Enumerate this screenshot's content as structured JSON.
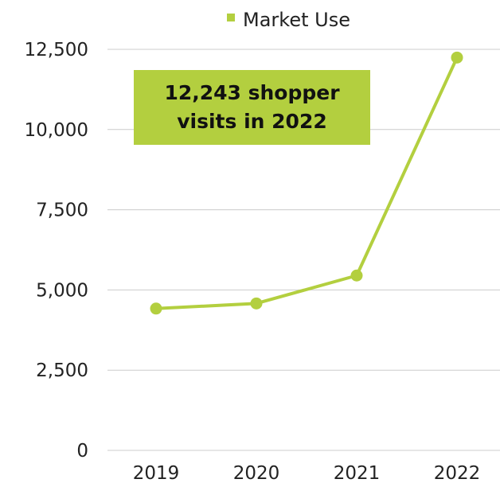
{
  "chart_data": {
    "type": "line",
    "categories": [
      "2019",
      "2020",
      "2021",
      "2022"
    ],
    "series": [
      {
        "name": "Market Use",
        "values": [
          4420,
          4580,
          5450,
          12243
        ]
      }
    ],
    "title": "",
    "xlabel": "",
    "ylabel": "",
    "ylim": [
      0,
      12500
    ],
    "yticks": [
      "0",
      "2,500",
      "5,000",
      "7,500",
      "10,000",
      "12,500"
    ],
    "grid": true,
    "legend": "top-center",
    "color": "#b3cf3f",
    "annotation": {
      "line1": "12,243 shopper",
      "line2": "visits in 2022"
    }
  }
}
